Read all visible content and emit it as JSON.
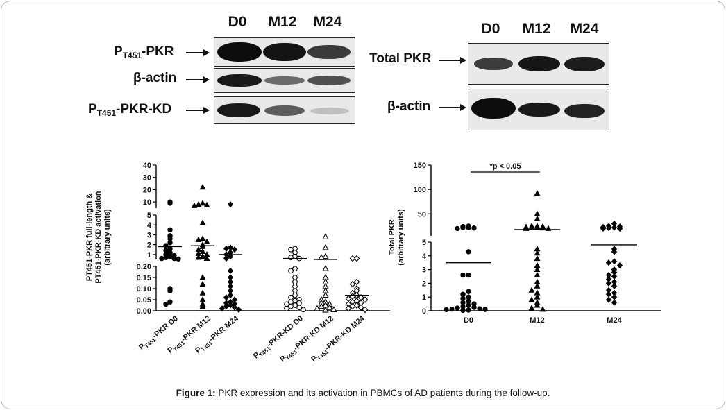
{
  "blots": {
    "left_headers": [
      "D0",
      "M12",
      "M24"
    ],
    "right_headers": [
      "D0",
      "M12",
      "M24"
    ],
    "left_rows": [
      {
        "prefix": "P",
        "sub": "T451",
        "suffix": "-PKR"
      },
      {
        "prefix": "β-actin",
        "sub": "",
        "suffix": ""
      },
      {
        "prefix": "P",
        "sub": "T451",
        "suffix": "-PKR-KD"
      }
    ],
    "right_rows": [
      "Total PKR",
      "β-actin"
    ]
  },
  "chart_data": [
    {
      "type": "scatter",
      "title": "",
      "ylabel_line1": "PT451-PKR full-length &",
      "ylabel_line2": "PT451-PKR-KD activation",
      "ylabel_line3": "(arbitrary units)",
      "y_axis_segments": [
        {
          "range": [
            0,
            0.2
          ],
          "ticks": [
            "0.00",
            "0.05",
            "0.10",
            "0.15",
            "0.20"
          ]
        },
        {
          "range": [
            0.5,
            5
          ],
          "ticks": [
            "1",
            "2",
            "3",
            "4",
            "5"
          ]
        },
        {
          "range": [
            5,
            40
          ],
          "ticks": [
            "10",
            "20",
            "30",
            "40"
          ]
        }
      ],
      "categories": [
        "PT451-PKR D0",
        "PT451-PKR M12",
        "PT451-PKR M24",
        "PT451-PKR-KD D0",
        "PT451-PKR-KD M12",
        "PT451-PKR-KD M24"
      ],
      "category_labels": [
        {
          "p": "P",
          "sub": "T451",
          "rest": "-PKR D0"
        },
        {
          "p": "P",
          "sub": "T451",
          "rest": "-PKR M12"
        },
        {
          "p": "P",
          "sub": "T451",
          "rest": "-PKR M24"
        },
        {
          "p": "P",
          "sub": "T451",
          "rest": "-PKR-KD D0"
        },
        {
          "p": "P",
          "sub": "T451",
          "rest": "-PKR-KD M12"
        },
        {
          "p": "P",
          "sub": "T451",
          "rest": "-PKR-KD M24"
        }
      ],
      "series": [
        {
          "marker": "circle-filled",
          "means": 1.8,
          "values": [
            10,
            9,
            3.5,
            2.9,
            2.6,
            2.2,
            1.9,
            1.6,
            1.4,
            1.2,
            1.0,
            0.9,
            0.8,
            0.7,
            0.6,
            0.6,
            0.55,
            0.1,
            0.09,
            0.04,
            0.03
          ]
        },
        {
          "marker": "triangle-filled",
          "means": 1.9,
          "values": [
            22,
            9,
            8,
            7.5,
            7,
            4.2,
            2.6,
            2.5,
            2.3,
            2.0,
            1.8,
            1.5,
            1.3,
            1.1,
            1.0,
            0.8,
            0.7,
            0.6,
            0.15,
            0.12,
            0.08,
            0.05,
            0.03,
            0.02
          ]
        },
        {
          "marker": "diamond-filled",
          "means": 1.0,
          "values": [
            8,
            1.7,
            1.6,
            1.5,
            1.2,
            1.0,
            0.8,
            0.6,
            0.18,
            0.15,
            0.13,
            0.11,
            0.09,
            0.07,
            0.06,
            0.05,
            0.04,
            0.035,
            0.03,
            0.025,
            0.02,
            0.015,
            0.01,
            0.005
          ]
        },
        {
          "marker": "circle-open",
          "means": 0.6,
          "values": [
            1.6,
            1.5,
            1.2,
            0.8,
            0.7,
            0.6,
            0.19,
            0.18,
            0.15,
            0.13,
            0.11,
            0.09,
            0.07,
            0.06,
            0.05,
            0.045,
            0.04,
            0.035,
            0.03,
            0.025,
            0.02,
            0.015,
            0.01,
            0.005
          ]
        },
        {
          "marker": "triangle-open",
          "means": 0.5,
          "values": [
            2.8,
            1.7,
            0.8,
            0.7,
            0.19,
            0.15,
            0.13,
            0.11,
            0.09,
            0.07,
            0.05,
            0.04,
            0.035,
            0.03,
            0.025,
            0.02,
            0.015,
            0.01,
            0.005,
            0.003
          ]
        },
        {
          "marker": "diamond-open",
          "means": 0.07,
          "values": [
            0.6,
            0.6,
            0.13,
            0.12,
            0.1,
            0.09,
            0.08,
            0.07,
            0.065,
            0.06,
            0.055,
            0.05,
            0.045,
            0.04,
            0.035,
            0.03,
            0.025,
            0.02,
            0.015,
            0.01,
            0.005
          ]
        }
      ]
    },
    {
      "type": "scatter",
      "title": "",
      "ylabel_line1": "Total PKR",
      "ylabel_line2": "(arbitrary units)",
      "annotation": "*p < 0.05",
      "y_axis_segments": [
        {
          "range": [
            0,
            5
          ],
          "ticks": [
            "0",
            "1",
            "2",
            "3",
            "4",
            "5"
          ]
        },
        {
          "range": [
            5,
            150
          ],
          "ticks": [
            "50",
            "100",
            "150"
          ]
        }
      ],
      "categories": [
        "D0",
        "M12",
        "M24"
      ],
      "series": [
        {
          "marker": "circle-filled",
          "means": 3.5,
          "values": [
            25,
            24,
            22,
            22,
            21,
            20,
            4.3,
            2.6,
            2.6,
            1.4,
            1.2,
            1.0,
            0.9,
            0.7,
            0.6,
            0.5,
            0.4,
            0.3,
            0.25,
            0.2,
            0.15,
            0.12,
            0.1,
            0.08,
            0.05,
            0.03
          ]
        },
        {
          "marker": "triangle-filled",
          "means": 18,
          "values": [
            92,
            50,
            40,
            25,
            25,
            24,
            23,
            22,
            22,
            21,
            20,
            20,
            4.5,
            4.2,
            3.8,
            3.3,
            3.0,
            2.6,
            2.1,
            1.8,
            1.5,
            1.3,
            1.0,
            0.8,
            0.6,
            0.4,
            0.2,
            0.1
          ]
        },
        {
          "marker": "diamond-filled",
          "means": 4.8,
          "values": [
            30,
            25,
            24,
            23,
            22,
            21,
            20,
            20,
            4.5,
            4.3,
            3.6,
            3.5,
            3.3,
            3.0,
            2.8,
            2.6,
            2.5,
            2.3,
            2.1,
            2.0,
            1.8,
            1.5,
            1.3,
            1.2,
            1.0,
            0.8,
            0.6
          ]
        }
      ]
    }
  ],
  "caption": {
    "label": "Figure 1:",
    "text": " PKR expression and its activation in PBMCs of AD patients during the follow-up."
  }
}
